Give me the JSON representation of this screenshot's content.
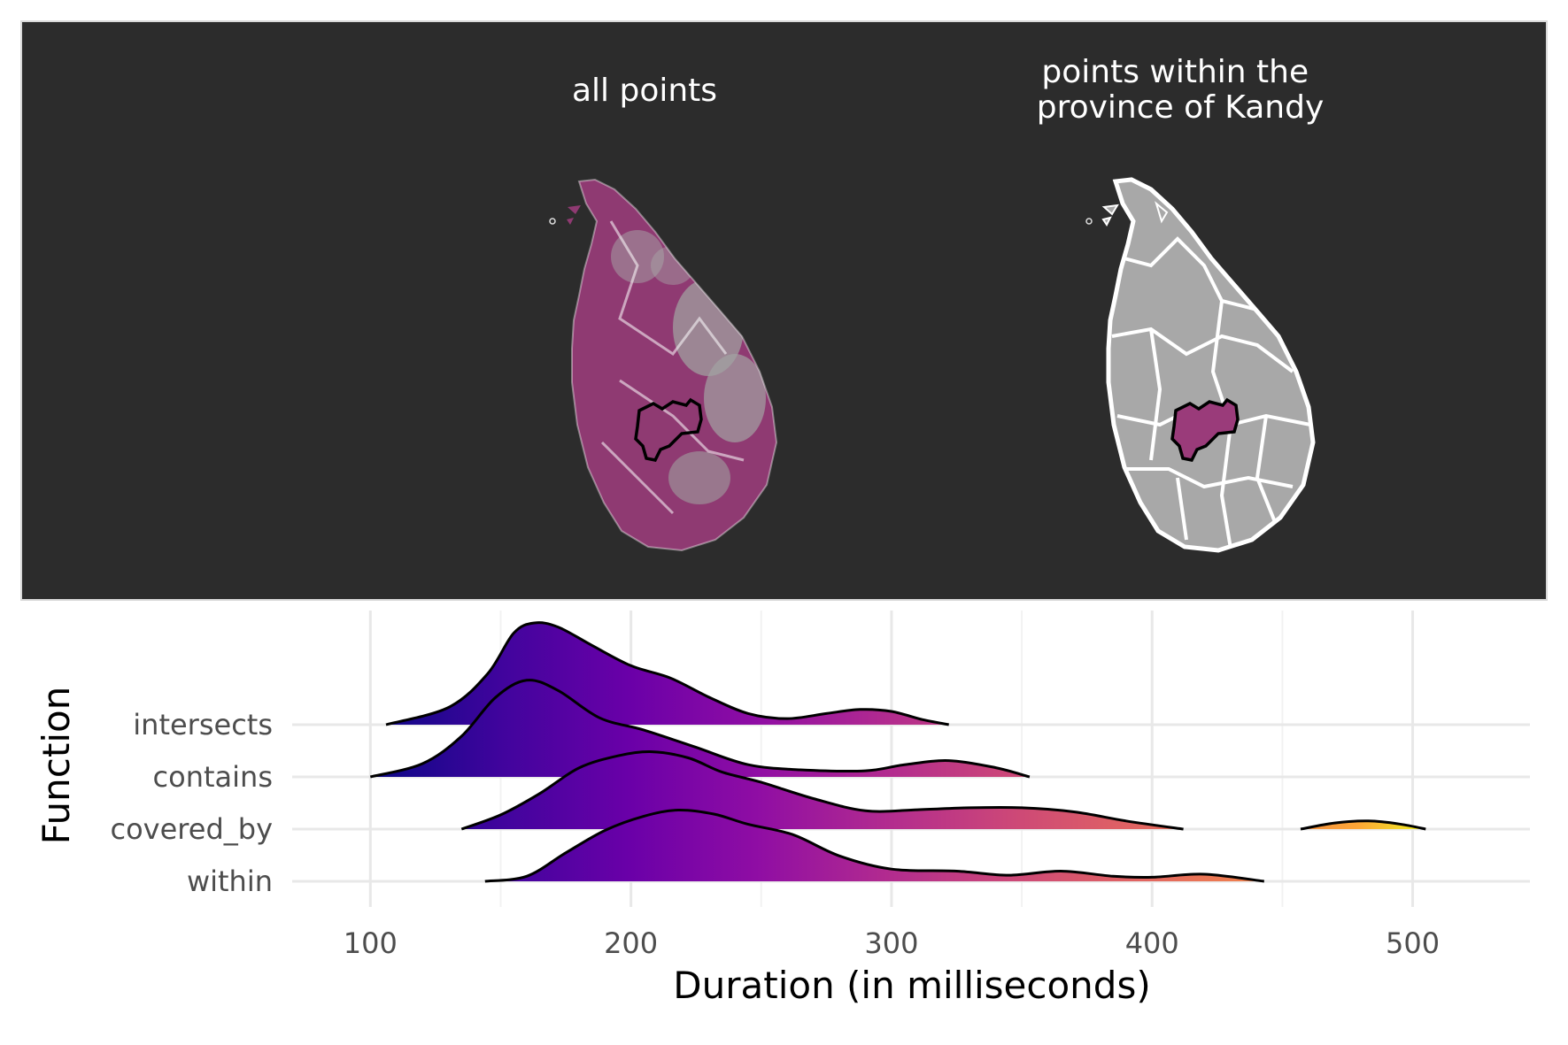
{
  "maps": {
    "panels": [
      {
        "title_lines": [
          "all points"
        ]
      },
      {
        "title_lines": [
          "points within the",
          "province of Kandy"
        ]
      }
    ],
    "colors": {
      "background": "#2c2c2c",
      "land": "#a8a8a8",
      "points": "#9a3b7a",
      "border": "#ffffff",
      "highlight": "#000000"
    }
  },
  "chart_data": {
    "type": "ridgeline",
    "xlabel": "Duration (in milliseconds)",
    "ylabel": "Function",
    "xlim": [
      70,
      545
    ],
    "x_ticks": [
      100,
      200,
      300,
      400,
      500
    ],
    "colormap": "plasma",
    "series": [
      {
        "name": "intersects",
        "range": [
          106,
          322
        ],
        "density": [
          [
            106,
            0
          ],
          [
            130,
            0.17
          ],
          [
            145,
            0.5
          ],
          [
            155,
            0.9
          ],
          [
            163,
            1.0
          ],
          [
            172,
            0.96
          ],
          [
            185,
            0.78
          ],
          [
            200,
            0.58
          ],
          [
            215,
            0.46
          ],
          [
            230,
            0.27
          ],
          [
            245,
            0.11
          ],
          [
            260,
            0.06
          ],
          [
            275,
            0.11
          ],
          [
            288,
            0.15
          ],
          [
            300,
            0.13
          ],
          [
            312,
            0.05
          ],
          [
            322,
            0
          ]
        ]
      },
      {
        "name": "contains",
        "range": [
          100,
          353
        ],
        "density": [
          [
            100,
            0
          ],
          [
            120,
            0.13
          ],
          [
            135,
            0.4
          ],
          [
            148,
            0.78
          ],
          [
            160,
            0.95
          ],
          [
            172,
            0.85
          ],
          [
            188,
            0.58
          ],
          [
            205,
            0.46
          ],
          [
            225,
            0.29
          ],
          [
            245,
            0.12
          ],
          [
            265,
            0.07
          ],
          [
            290,
            0.06
          ],
          [
            305,
            0.12
          ],
          [
            322,
            0.16
          ],
          [
            340,
            0.09
          ],
          [
            353,
            0
          ]
        ]
      },
      {
        "name": "covered_by",
        "range": [
          135,
          505
        ],
        "density": [
          [
            135,
            0
          ],
          [
            150,
            0.14
          ],
          [
            165,
            0.35
          ],
          [
            180,
            0.6
          ],
          [
            195,
            0.72
          ],
          [
            208,
            0.76
          ],
          [
            222,
            0.7
          ],
          [
            235,
            0.56
          ],
          [
            250,
            0.46
          ],
          [
            270,
            0.3
          ],
          [
            290,
            0.18
          ],
          [
            310,
            0.19
          ],
          [
            330,
            0.21
          ],
          [
            350,
            0.21
          ],
          [
            370,
            0.17
          ],
          [
            390,
            0.08
          ],
          [
            412,
            0
          ],
          [
            457,
            0
          ],
          [
            470,
            0.06
          ],
          [
            483,
            0.08
          ],
          [
            495,
            0.05
          ],
          [
            505,
            0
          ]
        ]
      },
      {
        "name": "within",
        "range": [
          144,
          443
        ],
        "density": [
          [
            144,
            0
          ],
          [
            160,
            0.05
          ],
          [
            175,
            0.28
          ],
          [
            190,
            0.5
          ],
          [
            205,
            0.64
          ],
          [
            218,
            0.7
          ],
          [
            232,
            0.66
          ],
          [
            245,
            0.56
          ],
          [
            262,
            0.46
          ],
          [
            280,
            0.25
          ],
          [
            300,
            0.12
          ],
          [
            325,
            0.1
          ],
          [
            345,
            0.06
          ],
          [
            365,
            0.1
          ],
          [
            385,
            0.05
          ],
          [
            400,
            0.04
          ],
          [
            420,
            0.07
          ],
          [
            443,
            0
          ]
        ]
      }
    ]
  }
}
